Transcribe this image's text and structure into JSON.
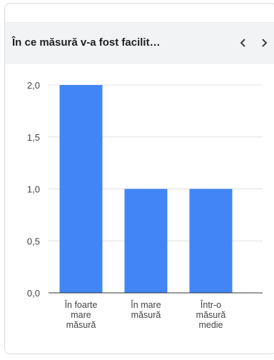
{
  "card": {
    "title": "În ce măsură v-a fost facilit…",
    "prev_icon": "chevron-left-icon",
    "next_icon": "chevron-right-icon"
  },
  "colors": {
    "bar": "#4285f4",
    "grid": "#e0e0e0",
    "axis": "#333333",
    "header_bg": "#f1f3f4"
  },
  "chart_data": {
    "type": "bar",
    "categories": [
      [
        "În foarte",
        "mare",
        "măsură"
      ],
      [
        "În mare",
        "măsură"
      ],
      [
        "Într-o",
        "măsură",
        "medie"
      ]
    ],
    "values": [
      2,
      1,
      1
    ],
    "yticks": [
      "0,0",
      "0,5",
      "1,0",
      "1,5",
      "2,0"
    ],
    "ylim": [
      0,
      2
    ],
    "grid": true,
    "legend": "none"
  }
}
